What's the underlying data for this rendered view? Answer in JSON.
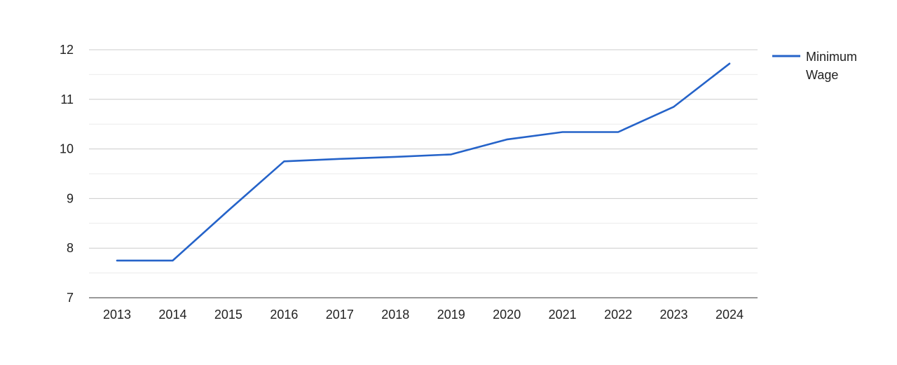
{
  "chart_data": {
    "type": "line",
    "x": [
      "2013",
      "2014",
      "2015",
      "2016",
      "2017",
      "2018",
      "2019",
      "2020",
      "2021",
      "2022",
      "2023",
      "2024"
    ],
    "series": [
      {
        "name": "Minimum Wage",
        "name_lines": [
          "Minimum",
          "Wage"
        ],
        "values": [
          7.75,
          7.75,
          8.76,
          9.75,
          9.8,
          9.84,
          9.89,
          10.19,
          10.34,
          10.34,
          10.85,
          11.72
        ],
        "color": "#2563c9"
      }
    ],
    "y_ticks": [
      "7",
      "8",
      "9",
      "10",
      "11",
      "12"
    ],
    "ylim": [
      7,
      12
    ],
    "minor_gridlines": true,
    "grid": true,
    "legend": "right",
    "title": "",
    "xlabel": "",
    "ylabel": ""
  }
}
